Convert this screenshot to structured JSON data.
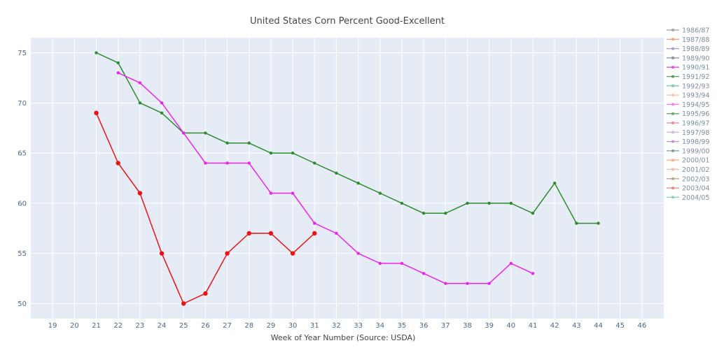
{
  "chart_data": {
    "type": "line",
    "title": "United States Corn Percent Good-Excellent",
    "xlabel": "Week of Year Number     (Source: USDA)",
    "ylabel": "",
    "xlim": [
      18,
      47
    ],
    "ylim": [
      48.5,
      76.5
    ],
    "x_ticks": [
      19,
      20,
      21,
      22,
      23,
      24,
      25,
      26,
      27,
      28,
      29,
      30,
      31,
      32,
      33,
      34,
      35,
      36,
      37,
      38,
      39,
      40,
      41,
      42,
      43,
      44,
      45,
      46
    ],
    "y_ticks": [
      50,
      55,
      60,
      65,
      70,
      75
    ],
    "grid": true,
    "legend_position": "right",
    "legend_entries": [
      {
        "name": "1986/87",
        "color": "#9aa3b5"
      },
      {
        "name": "1987/88",
        "color": "#f0a37a"
      },
      {
        "name": "1988/89",
        "color": "#a99ad0"
      },
      {
        "name": "1989/90",
        "color": "#8a8fa0"
      },
      {
        "name": "1990/91",
        "color": "#e052d6"
      },
      {
        "name": "1991/92",
        "color": "#5b9a5b"
      },
      {
        "name": "1992/93",
        "color": "#84c7a0"
      },
      {
        "name": "1993/94",
        "color": "#f6c1a8"
      },
      {
        "name": "1994/95",
        "color": "#f07ae8"
      },
      {
        "name": "1995/96",
        "color": "#6aa86a"
      },
      {
        "name": "1996/97",
        "color": "#f08a80"
      },
      {
        "name": "1997/98",
        "color": "#c9b7f0"
      },
      {
        "name": "1998/99",
        "color": "#c98ad6"
      },
      {
        "name": "1999/00",
        "color": "#74a0a0"
      },
      {
        "name": "2000/01",
        "color": "#f5b08a"
      },
      {
        "name": "2001/02",
        "color": "#f5b9b0"
      },
      {
        "name": "2002/03",
        "color": "#b7a97a"
      },
      {
        "name": "2003/04",
        "color": "#e88a7a"
      },
      {
        "name": "2004/05",
        "color": "#86c9c0"
      }
    ],
    "series": [
      {
        "color": "#2e8b2e",
        "marker_size": 2.2,
        "x": [
          21,
          22,
          23,
          24,
          25,
          26,
          27,
          28,
          29,
          30,
          31,
          32,
          33,
          34,
          35,
          36,
          37,
          38,
          39,
          40,
          41,
          42,
          43,
          44
        ],
        "y": [
          75,
          74,
          70,
          69,
          67,
          67,
          66,
          66,
          65,
          65,
          64,
          63,
          62,
          61,
          60,
          59,
          59,
          60,
          60,
          60,
          59,
          62,
          58,
          58
        ]
      },
      {
        "color": "#ee22ee",
        "marker_size": 2.2,
        "x": [
          22,
          23,
          24,
          25,
          26,
          27,
          28,
          29,
          30,
          31,
          32,
          33,
          34,
          35,
          36,
          37,
          38,
          39,
          40,
          41
        ],
        "y": [
          73,
          72,
          70,
          67,
          64,
          64,
          64,
          61,
          61,
          58,
          57,
          55,
          54,
          54,
          53,
          52,
          52,
          52,
          54,
          53
        ]
      },
      {
        "color": "#ee1111",
        "marker_size": 3.2,
        "x": [
          21,
          22,
          23,
          24,
          25,
          26,
          27,
          28,
          29,
          30,
          31
        ],
        "y": [
          69,
          64,
          61,
          55,
          50,
          51,
          55,
          57,
          57,
          55,
          57
        ]
      }
    ]
  }
}
